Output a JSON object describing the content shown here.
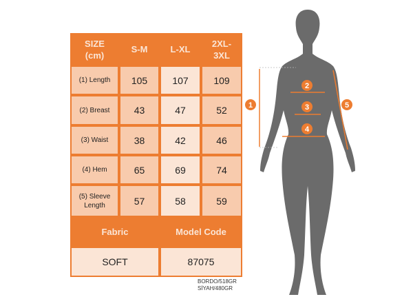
{
  "table": {
    "header": [
      "SIZE\n(cm)",
      "S-M",
      "L-XL",
      "2XL-\n3XL"
    ],
    "rows": [
      {
        "label": "(1) Length",
        "values": [
          "105",
          "107",
          "109"
        ]
      },
      {
        "label": "(2) Breast",
        "values": [
          "43",
          "47",
          "52"
        ]
      },
      {
        "label": "(3) Waist",
        "values": [
          "38",
          "42",
          "46"
        ]
      },
      {
        "label": "(4) Hem",
        "values": [
          "65",
          "69",
          "74"
        ]
      },
      {
        "label": "(5) Sleeve Length",
        "values": [
          "57",
          "58",
          "59"
        ]
      }
    ],
    "fabric_label": "Fabric",
    "model_code_label": "Model Code",
    "fabric_value": "SOFT",
    "model_code_value": "87075"
  },
  "notes": [
    "BORDO/518GR",
    "SİYAH/480GR"
  ],
  "figure": {
    "markers": [
      "1",
      "2",
      "3",
      "4",
      "5"
    ]
  },
  "colors": {
    "accent": "#ed7d31",
    "cell_dark": "#f8cbad",
    "cell_light": "#fbe5d6",
    "silhouette": "#6b6b6b"
  }
}
